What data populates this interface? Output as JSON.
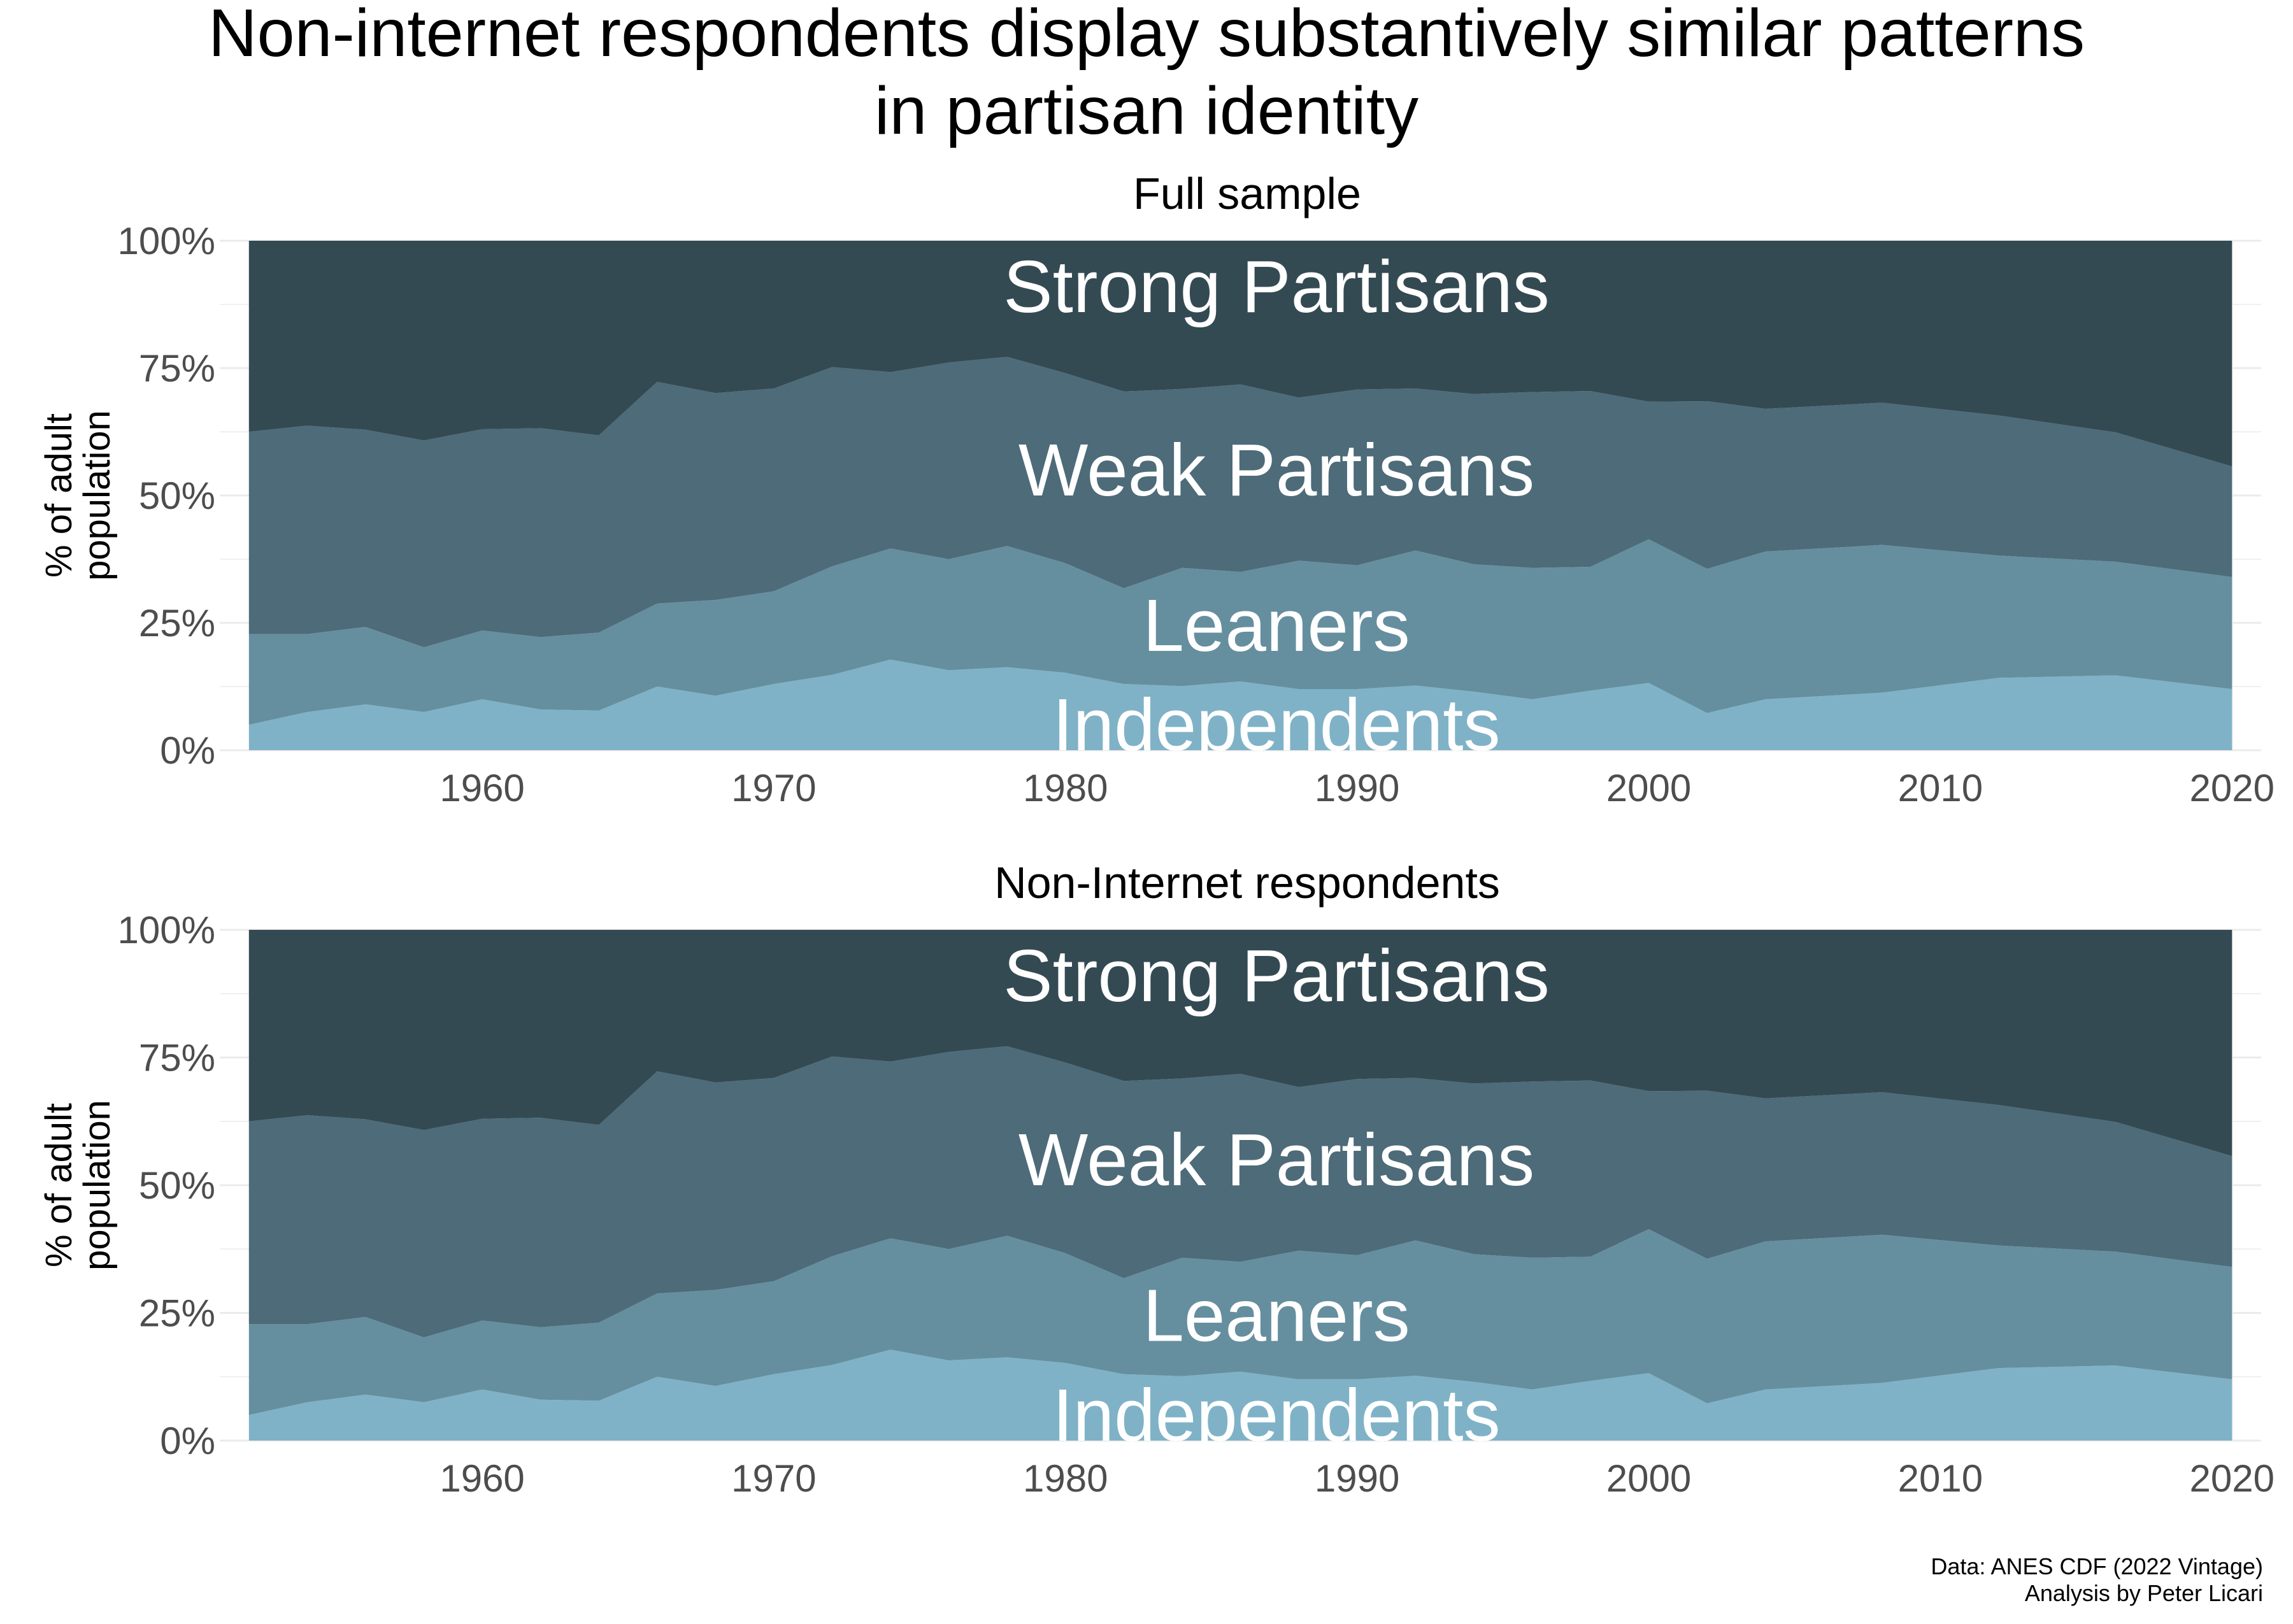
{
  "title_lines": [
    "Non-internet respondents display substantively similar patterns",
    "in partisan identity"
  ],
  "caption_lines": [
    "Data: ANES CDF (2022 Vintage)",
    "Analysis by Peter Licari"
  ],
  "colors": {
    "Independents": "#7fb2c7",
    "Leaners": "#658f9f",
    "Weak Partisans": "#4d6b79",
    "Strong Partisans": "#344a53"
  },
  "chart_data": [
    {
      "type": "area",
      "title": "Full sample",
      "ylabel": "% of adult\npopulation",
      "xlim": [
        1951,
        2021
      ],
      "ylim": [
        0,
        1
      ],
      "x_ticks": [
        "1960",
        "1970",
        "1980",
        "1990",
        "2000",
        "2010",
        "2020"
      ],
      "y_ticks": [
        "0%",
        "25%",
        "50%",
        "75%",
        "100%"
      ],
      "grid": true,
      "x": [
        1952,
        1954,
        1956,
        1958,
        1960,
        1962,
        1964,
        1966,
        1968,
        1970,
        1972,
        1974,
        1976,
        1978,
        1980,
        1982,
        1984,
        1986,
        1988,
        1990,
        1992,
        1994,
        1996,
        1998,
        2000,
        2002,
        2004,
        2008,
        2012,
        2016,
        2020
      ],
      "series": [
        {
          "name": "Independents",
          "values": [
            0.05,
            0.075,
            0.09,
            0.075,
            0.1,
            0.08,
            0.078,
            0.125,
            0.107,
            0.13,
            0.148,
            0.178,
            0.157,
            0.163,
            0.152,
            0.13,
            0.126,
            0.135,
            0.12,
            0.12,
            0.127,
            0.115,
            0.1,
            0.117,
            0.132,
            0.073,
            0.1,
            0.113,
            0.142,
            0.147,
            0.12
          ]
        },
        {
          "name": "Leaners",
          "values": [
            0.178,
            0.153,
            0.152,
            0.127,
            0.135,
            0.142,
            0.153,
            0.163,
            0.188,
            0.182,
            0.213,
            0.218,
            0.218,
            0.238,
            0.215,
            0.188,
            0.232,
            0.215,
            0.252,
            0.243,
            0.265,
            0.25,
            0.258,
            0.243,
            0.282,
            0.283,
            0.29,
            0.29,
            0.24,
            0.223,
            0.22
          ]
        },
        {
          "name": "Weak Partisans",
          "values": [
            0.397,
            0.409,
            0.387,
            0.406,
            0.395,
            0.41,
            0.387,
            0.435,
            0.406,
            0.398,
            0.391,
            0.346,
            0.386,
            0.371,
            0.373,
            0.386,
            0.351,
            0.368,
            0.32,
            0.345,
            0.318,
            0.334,
            0.345,
            0.345,
            0.27,
            0.329,
            0.28,
            0.279,
            0.275,
            0.254,
            0.217
          ]
        },
        {
          "name": "Strong Partisans",
          "values": [
            0.375,
            0.363,
            0.371,
            0.392,
            0.37,
            0.368,
            0.382,
            0.277,
            0.299,
            0.29,
            0.248,
            0.258,
            0.239,
            0.228,
            0.26,
            0.296,
            0.291,
            0.282,
            0.308,
            0.292,
            0.29,
            0.301,
            0.297,
            0.295,
            0.316,
            0.315,
            0.33,
            0.318,
            0.343,
            0.376,
            0.443
          ]
        }
      ],
      "band_labels": [
        "Strong Partisans",
        "Weak Partisans",
        "Leaners",
        "Independents"
      ]
    },
    {
      "type": "area",
      "title": "Non-Internet respondents",
      "ylabel": "% of adult\npopulation",
      "xlim": [
        1951,
        2021
      ],
      "ylim": [
        0,
        1
      ],
      "x_ticks": [
        "1960",
        "1970",
        "1980",
        "1990",
        "2000",
        "2010",
        "2020"
      ],
      "y_ticks": [
        "0%",
        "25%",
        "50%",
        "75%",
        "100%"
      ],
      "grid": true,
      "x": [
        1952,
        1954,
        1956,
        1958,
        1960,
        1962,
        1964,
        1966,
        1968,
        1970,
        1972,
        1974,
        1976,
        1978,
        1980,
        1982,
        1984,
        1986,
        1988,
        1990,
        1992,
        1994,
        1996,
        1998,
        2000,
        2002,
        2004,
        2008,
        2012,
        2016,
        2020
      ],
      "series": [
        {
          "name": "Independents",
          "values": [
            0.05,
            0.075,
            0.09,
            0.075,
            0.1,
            0.08,
            0.078,
            0.125,
            0.107,
            0.13,
            0.148,
            0.178,
            0.157,
            0.163,
            0.152,
            0.13,
            0.126,
            0.135,
            0.12,
            0.12,
            0.127,
            0.115,
            0.1,
            0.117,
            0.132,
            0.073,
            0.1,
            0.113,
            0.142,
            0.147,
            0.12
          ]
        },
        {
          "name": "Leaners",
          "values": [
            0.178,
            0.153,
            0.152,
            0.127,
            0.135,
            0.142,
            0.153,
            0.163,
            0.188,
            0.182,
            0.213,
            0.218,
            0.218,
            0.238,
            0.215,
            0.188,
            0.232,
            0.215,
            0.252,
            0.243,
            0.265,
            0.25,
            0.258,
            0.243,
            0.282,
            0.283,
            0.29,
            0.29,
            0.24,
            0.223,
            0.22
          ]
        },
        {
          "name": "Weak Partisans",
          "values": [
            0.397,
            0.409,
            0.387,
            0.406,
            0.395,
            0.41,
            0.387,
            0.435,
            0.406,
            0.398,
            0.391,
            0.346,
            0.386,
            0.371,
            0.373,
            0.386,
            0.351,
            0.368,
            0.32,
            0.345,
            0.318,
            0.334,
            0.345,
            0.345,
            0.27,
            0.329,
            0.28,
            0.279,
            0.275,
            0.254,
            0.217
          ]
        },
        {
          "name": "Strong Partisans",
          "values": [
            0.375,
            0.363,
            0.371,
            0.392,
            0.37,
            0.368,
            0.382,
            0.277,
            0.299,
            0.29,
            0.248,
            0.258,
            0.239,
            0.228,
            0.26,
            0.296,
            0.291,
            0.282,
            0.308,
            0.292,
            0.29,
            0.301,
            0.297,
            0.295,
            0.316,
            0.315,
            0.33,
            0.318,
            0.343,
            0.376,
            0.443
          ]
        }
      ],
      "band_labels": [
        "Strong Partisans",
        "Weak Partisans",
        "Leaners",
        "Independents"
      ]
    }
  ]
}
